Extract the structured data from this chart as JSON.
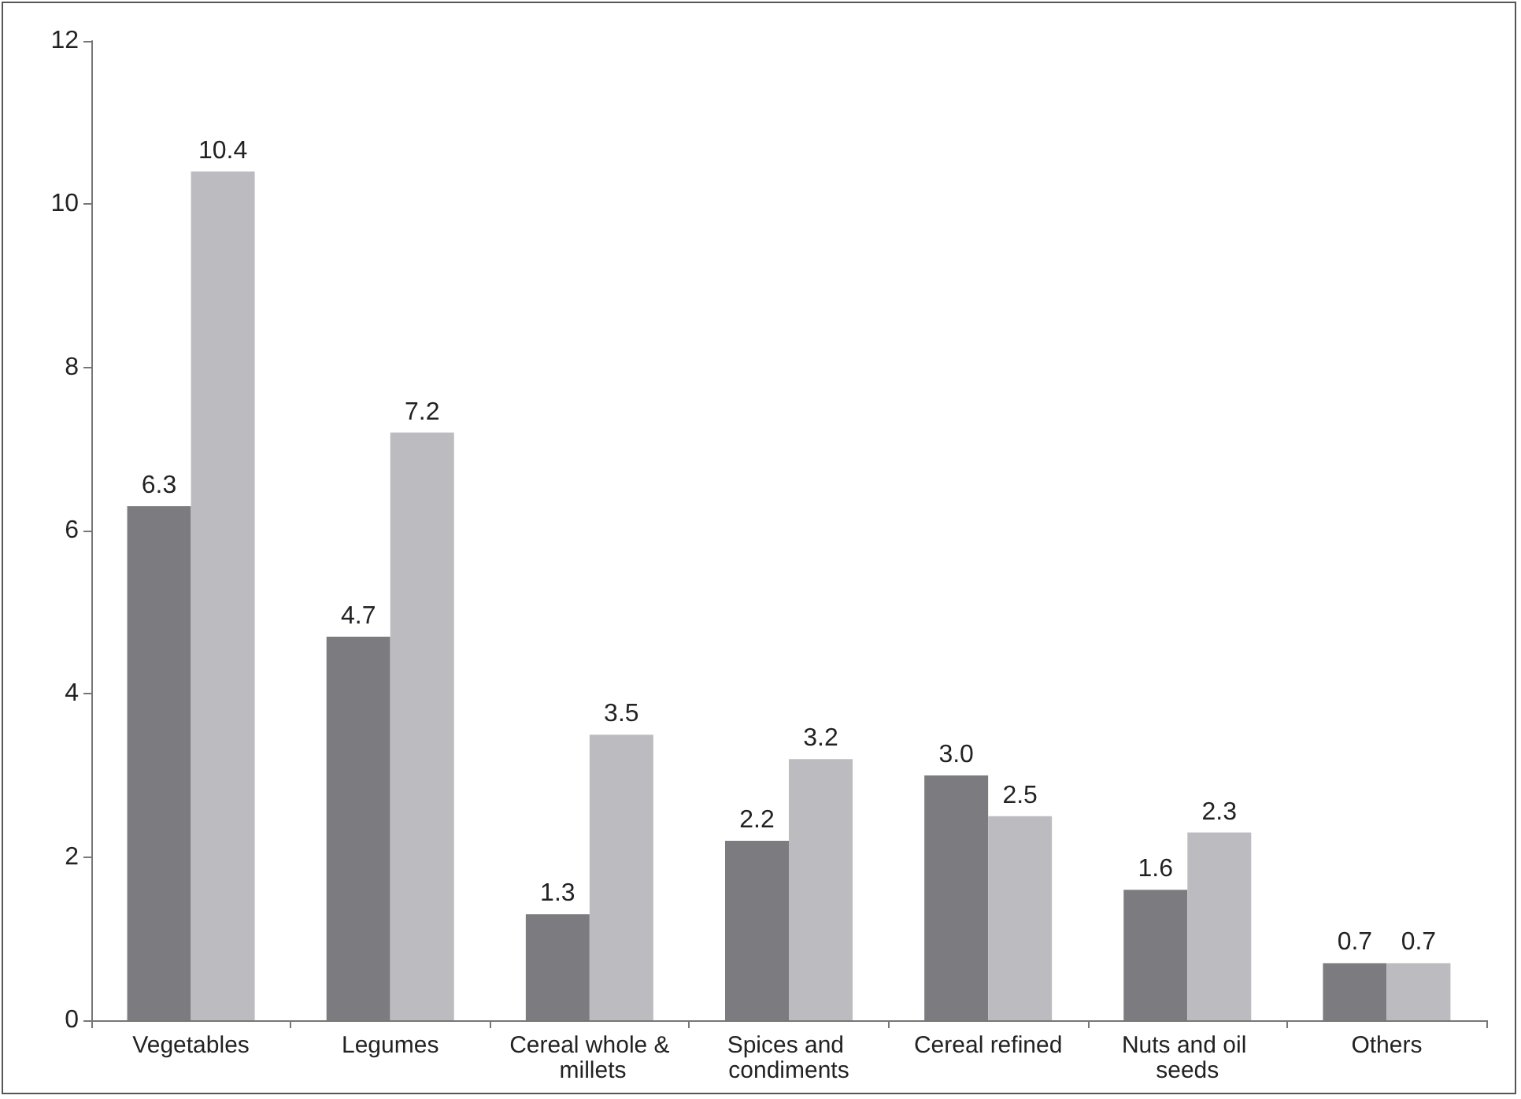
{
  "chart_data": {
    "type": "bar",
    "categories": [
      "Vegetables",
      "Legumes",
      "Cereal whole & millets",
      "Spices and condiments",
      "Cereal refined",
      "Nuts and oil seeds",
      "Others"
    ],
    "series": [
      {
        "color": "#7b7b80",
        "values": [
          6.3,
          4.7,
          1.3,
          2.2,
          3.0,
          1.6,
          0.7
        ],
        "value_labels": [
          "6.3",
          "4.7",
          "1.3",
          "2.2",
          "3.0",
          "1.6",
          "0.7"
        ]
      },
      {
        "color": "#bcbcc0",
        "values": [
          10.4,
          7.2,
          3.5,
          3.2,
          2.5,
          2.3,
          0.7
        ],
        "value_labels": [
          "10.4",
          "7.2",
          "3.5",
          "3.2",
          "2.5",
          "2.3",
          "0.7"
        ]
      }
    ],
    "ylim": [
      0,
      12
    ],
    "yticks": [
      0,
      2,
      4,
      6,
      8,
      10,
      12
    ],
    "grid": false
  }
}
